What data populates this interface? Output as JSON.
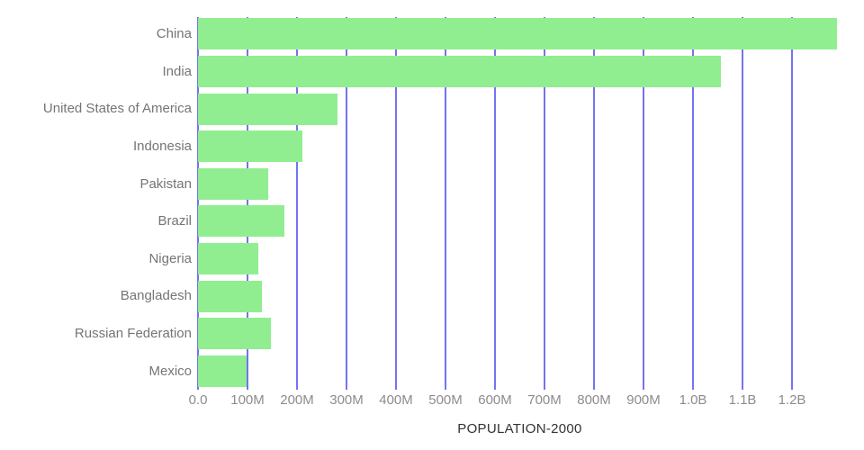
{
  "chart_data": {
    "type": "bar",
    "orientation": "horizontal",
    "title": "POPULATION-2000",
    "categories": [
      "China",
      "India",
      "United States of America",
      "Indonesia",
      "Pakistan",
      "Brazil",
      "Nigeria",
      "Bangladesh",
      "Russian Federation",
      "Mexico"
    ],
    "values_millions": [
      1290,
      1056,
      282,
      211,
      142,
      175,
      122,
      129,
      147,
      99
    ],
    "x_ticks": [
      {
        "value": 0,
        "label": "0.0"
      },
      {
        "value": 100,
        "label": "100M"
      },
      {
        "value": 200,
        "label": "200M"
      },
      {
        "value": 300,
        "label": "300M"
      },
      {
        "value": 400,
        "label": "400M"
      },
      {
        "value": 500,
        "label": "500M"
      },
      {
        "value": 600,
        "label": "600M"
      },
      {
        "value": 700,
        "label": "700M"
      },
      {
        "value": 800,
        "label": "800M"
      },
      {
        "value": 900,
        "label": "900M"
      },
      {
        "value": 1000,
        "label": "1.0B"
      },
      {
        "value": 1100,
        "label": "1.1B"
      },
      {
        "value": 1200,
        "label": "1.2B"
      }
    ],
    "xlim_millions": [
      0,
      1300
    ],
    "grid": "vertical",
    "legend": "none",
    "colors": {
      "bar": "#90ee90",
      "gridline": "#7373ef",
      "category_label": "#757575",
      "tick_label": "#8c8c8c",
      "title": "#333333"
    }
  }
}
